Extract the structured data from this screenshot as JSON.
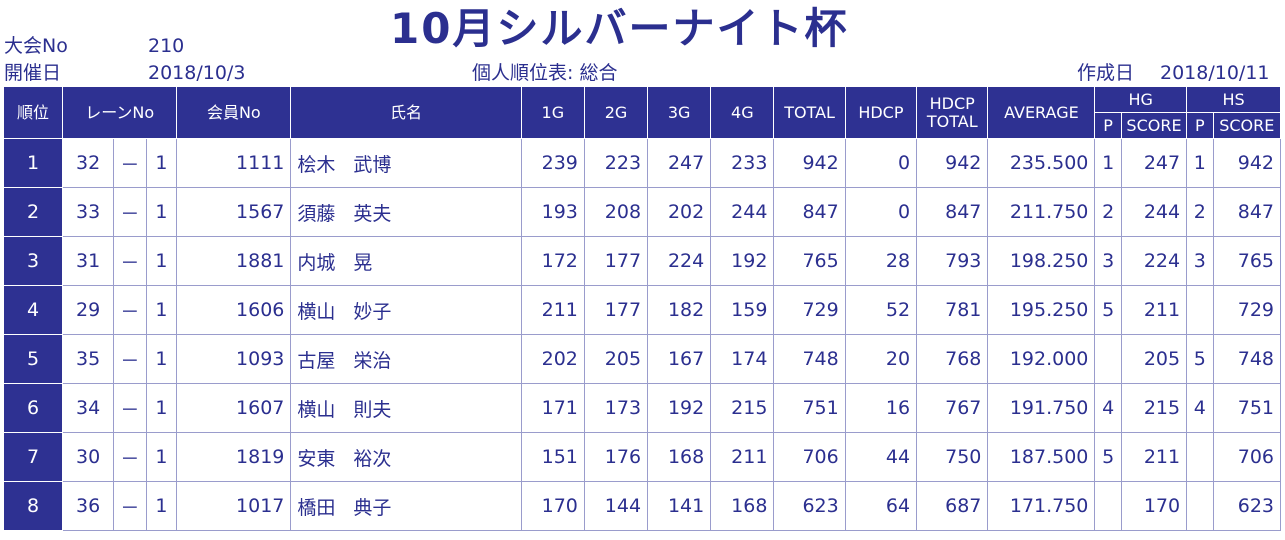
{
  "title": "10月シルバーナイト杯",
  "meta": {
    "tournament_label": "大会No",
    "tournament_value": "210",
    "date_label": "開催日",
    "date_value": "2018/10/3",
    "table_name": "個人順位表: 総合",
    "created_label": "作成日",
    "created_value": "2018/10/11"
  },
  "headers": {
    "rank": "順位",
    "lane": "レーンNo",
    "member": "会員No",
    "name": "氏名",
    "g1": "1G",
    "g2": "2G",
    "g3": "3G",
    "g4": "4G",
    "total": "TOTAL",
    "hdcp": "HDCP",
    "hdcp_total_1": "HDCP",
    "hdcp_total_2": "TOTAL",
    "average": "AVERAGE",
    "hg": "HG",
    "hs": "HS",
    "p": "P",
    "score": "SCORE"
  },
  "rows": [
    {
      "rank": "1",
      "lane": "32",
      "dash": "－",
      "lane_sub": "1",
      "member": "1111",
      "last": "桧木",
      "first": "武博",
      "g1": "239",
      "g2": "223",
      "g3": "247",
      "g4": "233",
      "total": "942",
      "hdcp": "0",
      "hdcp_total": "942",
      "average": "235.500",
      "hg_p": "1",
      "hg_score": "247",
      "hs_p": "1",
      "hs_score": "942"
    },
    {
      "rank": "2",
      "lane": "33",
      "dash": "－",
      "lane_sub": "1",
      "member": "1567",
      "last": "須藤",
      "first": "英夫",
      "g1": "193",
      "g2": "208",
      "g3": "202",
      "g4": "244",
      "total": "847",
      "hdcp": "0",
      "hdcp_total": "847",
      "average": "211.750",
      "hg_p": "2",
      "hg_score": "244",
      "hs_p": "2",
      "hs_score": "847"
    },
    {
      "rank": "3",
      "lane": "31",
      "dash": "－",
      "lane_sub": "1",
      "member": "1881",
      "last": "内城",
      "first": "晃",
      "g1": "172",
      "g2": "177",
      "g3": "224",
      "g4": "192",
      "total": "765",
      "hdcp": "28",
      "hdcp_total": "793",
      "average": "198.250",
      "hg_p": "3",
      "hg_score": "224",
      "hs_p": "3",
      "hs_score": "765"
    },
    {
      "rank": "4",
      "lane": "29",
      "dash": "－",
      "lane_sub": "1",
      "member": "1606",
      "last": "横山",
      "first": "妙子",
      "g1": "211",
      "g2": "177",
      "g3": "182",
      "g4": "159",
      "total": "729",
      "hdcp": "52",
      "hdcp_total": "781",
      "average": "195.250",
      "hg_p": "5",
      "hg_score": "211",
      "hs_p": "",
      "hs_score": "729"
    },
    {
      "rank": "5",
      "lane": "35",
      "dash": "－",
      "lane_sub": "1",
      "member": "1093",
      "last": "古屋",
      "first": "栄治",
      "g1": "202",
      "g2": "205",
      "g3": "167",
      "g4": "174",
      "total": "748",
      "hdcp": "20",
      "hdcp_total": "768",
      "average": "192.000",
      "hg_p": "",
      "hg_score": "205",
      "hs_p": "5",
      "hs_score": "748"
    },
    {
      "rank": "6",
      "lane": "34",
      "dash": "－",
      "lane_sub": "1",
      "member": "1607",
      "last": "横山",
      "first": "則夫",
      "g1": "171",
      "g2": "173",
      "g3": "192",
      "g4": "215",
      "total": "751",
      "hdcp": "16",
      "hdcp_total": "767",
      "average": "191.750",
      "hg_p": "4",
      "hg_score": "215",
      "hs_p": "4",
      "hs_score": "751"
    },
    {
      "rank": "7",
      "lane": "30",
      "dash": "－",
      "lane_sub": "1",
      "member": "1819",
      "last": "安東",
      "first": "裕次",
      "g1": "151",
      "g2": "176",
      "g3": "168",
      "g4": "211",
      "total": "706",
      "hdcp": "44",
      "hdcp_total": "750",
      "average": "187.500",
      "hg_p": "5",
      "hg_score": "211",
      "hs_p": "",
      "hs_score": "706"
    },
    {
      "rank": "8",
      "lane": "36",
      "dash": "－",
      "lane_sub": "1",
      "member": "1017",
      "last": "橋田",
      "first": "典子",
      "g1": "170",
      "g2": "144",
      "g3": "141",
      "g4": "168",
      "total": "623",
      "hdcp": "64",
      "hdcp_total": "687",
      "average": "171.750",
      "hg_p": "",
      "hg_score": "170",
      "hs_p": "",
      "hs_score": "623"
    }
  ]
}
